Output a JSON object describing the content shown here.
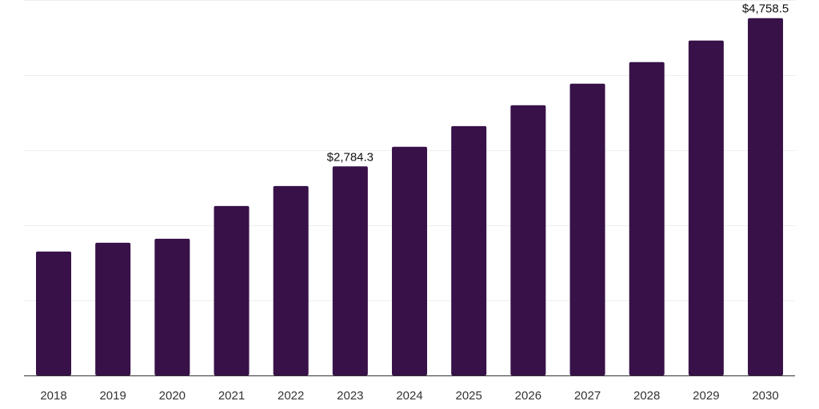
{
  "chart_data": {
    "type": "bar",
    "title": "",
    "xlabel": "",
    "ylabel": "",
    "categories": [
      "2018",
      "2019",
      "2020",
      "2021",
      "2022",
      "2023",
      "2024",
      "2025",
      "2026",
      "2027",
      "2028",
      "2029",
      "2030"
    ],
    "values": [
      1650,
      1767,
      1820,
      2257,
      2522,
      2784.3,
      3045,
      3321,
      3598,
      3885,
      4173,
      4460,
      4758.5
    ],
    "data_labels": [
      {
        "index": 5,
        "text": "$2,784.3"
      },
      {
        "index": 12,
        "text": "$4,758.5"
      }
    ],
    "ylim": [
      0,
      5000
    ],
    "grid": true,
    "grid_step": 1000,
    "bar_color": "#371148"
  }
}
